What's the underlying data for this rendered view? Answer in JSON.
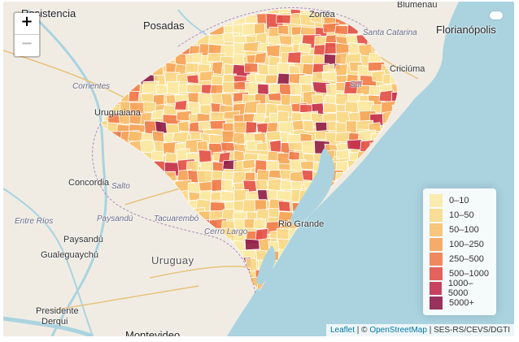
{
  "map": {
    "zoom_in_label": "+",
    "zoom_out_label": "−",
    "places": {
      "resistencia": "Resistencia",
      "posadas": "Posadas",
      "zortea": "Zortéa",
      "blumenau": "Blumenau",
      "santa_catarina": "Santa Catarina",
      "florianopolis": "Florianópolis",
      "corrientes": "Corrientes",
      "uruguaiana": "Uruguaiana",
      "criciuma": "Criciúma",
      "concordia": "Concordia",
      "salto": "Salto",
      "entre_rios": "Entre Ríos",
      "paysandu_dept": "Paysandú",
      "tacuarembo": "Tacuarembó",
      "paysandu_city": "Paysandú",
      "cerro_largo": "Cerro Largo",
      "gualeguaychu": "Gualeguaychú",
      "uruguay": "Uruguay",
      "presidente_derqui_1": "Presidente",
      "presidente_derqui_2": "Derqui",
      "montevideo": "Montevideo",
      "rio_grande": "Rio Grande",
      "sul": "Sul"
    }
  },
  "legend": {
    "items": [
      {
        "label": "0–10",
        "color": "#fbeaa5"
      },
      {
        "label": "10–50",
        "color": "#f8d98a"
      },
      {
        "label": "50–100",
        "color": "#f7bf6e"
      },
      {
        "label": "100–250",
        "color": "#f5a35a"
      },
      {
        "label": "250–500",
        "color": "#f07b4c"
      },
      {
        "label": "500–1000",
        "color": "#e2504a"
      },
      {
        "label": "1000–5000",
        "color": "#c22e4e"
      },
      {
        "label": "5000+",
        "color": "#8e1c4a"
      }
    ]
  },
  "attribution": {
    "leaflet": "Leaflet",
    "separator": " | © ",
    "osm": "OpenStreetMap",
    "source": " | SES-RS/CEVS/DGTI"
  },
  "colors": {
    "ocean": "#a9d3df",
    "land": "#f2efe9",
    "lagoon": "#a9d3df"
  }
}
